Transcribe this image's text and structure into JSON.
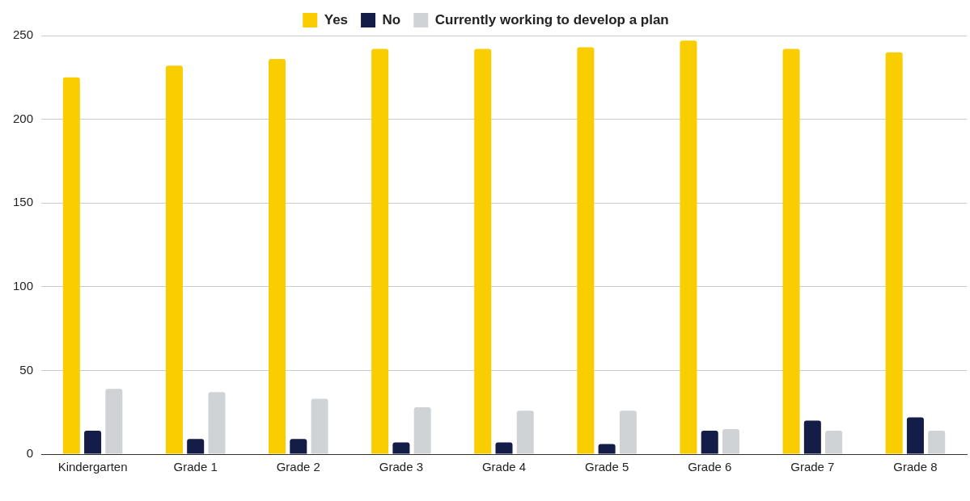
{
  "chart_data": {
    "type": "bar",
    "categories": [
      "Kindergarten",
      "Grade 1",
      "Grade 2",
      "Grade 3",
      "Grade 4",
      "Grade 5",
      "Grade 6",
      "Grade 7",
      "Grade 8"
    ],
    "series": [
      {
        "name": "Yes",
        "color": "#f9cd00",
        "values": [
          225,
          232,
          236,
          242,
          242,
          243,
          247,
          242,
          240
        ]
      },
      {
        "name": "No",
        "color": "#141d48",
        "values": [
          14,
          9,
          9,
          7,
          7,
          6,
          14,
          20,
          22
        ]
      },
      {
        "name": "Currently working to develop a plan",
        "color": "#d0d3d6",
        "values": [
          39,
          37,
          33,
          28,
          26,
          26,
          15,
          14,
          14
        ]
      }
    ],
    "ylim": [
      0,
      250
    ],
    "yticks": [
      0,
      50,
      100,
      150,
      200,
      250
    ],
    "grid": "y",
    "legend": "top"
  }
}
